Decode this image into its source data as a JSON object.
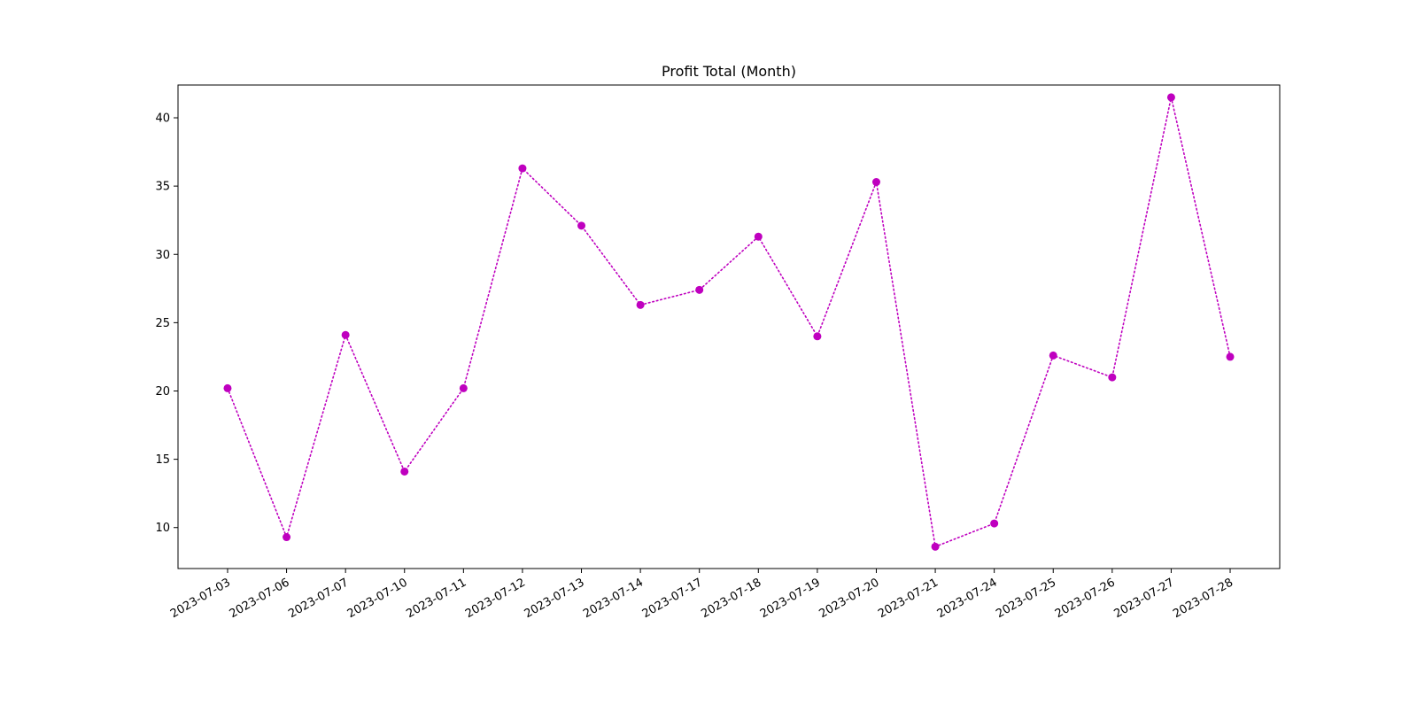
{
  "chart_data": {
    "type": "line",
    "title": "Profit Total (Month)",
    "xlabel": "",
    "ylabel": "",
    "categories": [
      "2023-07-03",
      "2023-07-06",
      "2023-07-07",
      "2023-07-10",
      "2023-07-11",
      "2023-07-12",
      "2023-07-13",
      "2023-07-14",
      "2023-07-17",
      "2023-07-18",
      "2023-07-19",
      "2023-07-20",
      "2023-07-21",
      "2023-07-24",
      "2023-07-25",
      "2023-07-26",
      "2023-07-27",
      "2023-07-28"
    ],
    "series": [
      {
        "color": "#bf00bf",
        "line_style": "dotted",
        "marker": "circle",
        "values": [
          20.2,
          9.3,
          24.1,
          14.1,
          20.2,
          36.3,
          32.1,
          26.3,
          27.4,
          31.3,
          24.0,
          35.3,
          8.6,
          10.3,
          22.6,
          21.0,
          41.5,
          22.5
        ]
      }
    ],
    "ylim": [
      7.0,
      42.4
    ],
    "yticks": [
      10,
      15,
      20,
      25,
      30,
      35,
      40
    ],
    "grid": false,
    "legend": "none"
  }
}
